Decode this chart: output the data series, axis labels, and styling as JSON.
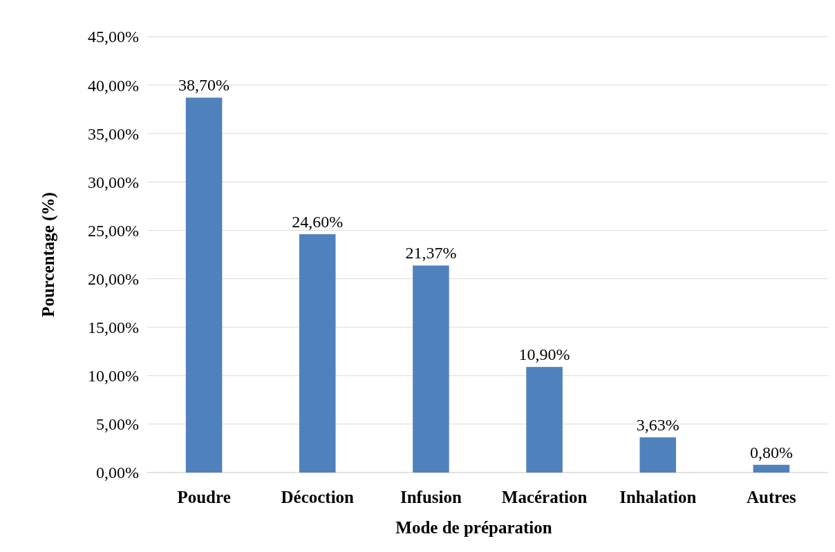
{
  "chart_data": {
    "type": "bar",
    "xlabel": "Mode de préparation",
    "ylabel": "Pourcentage (%)",
    "categories": [
      "Poudre",
      "Décoction",
      "Infusion",
      "Macération",
      "Inhalation",
      "Autres"
    ],
    "values": [
      38.7,
      24.6,
      21.37,
      10.9,
      3.63,
      0.8
    ],
    "value_labels": [
      "38,70%",
      "24,60%",
      "21,37%",
      "10,90%",
      "3,63%",
      "0,80%"
    ],
    "color": "#4f81bd",
    "ylim": [
      0,
      45
    ],
    "yticks": [
      {
        "value": 0,
        "label": "0,00%"
      },
      {
        "value": 5,
        "label": "5,00%"
      },
      {
        "value": 10,
        "label": "10,00%"
      },
      {
        "value": 15,
        "label": "15,00%"
      },
      {
        "value": 20,
        "label": "20,00%"
      },
      {
        "value": 25,
        "label": "25,00%"
      },
      {
        "value": 30,
        "label": "30,00%"
      },
      {
        "value": 35,
        "label": "35,00%"
      },
      {
        "value": 40,
        "label": "40,00%"
      },
      {
        "value": 45,
        "label": "45,00%"
      }
    ],
    "grid": "y"
  }
}
